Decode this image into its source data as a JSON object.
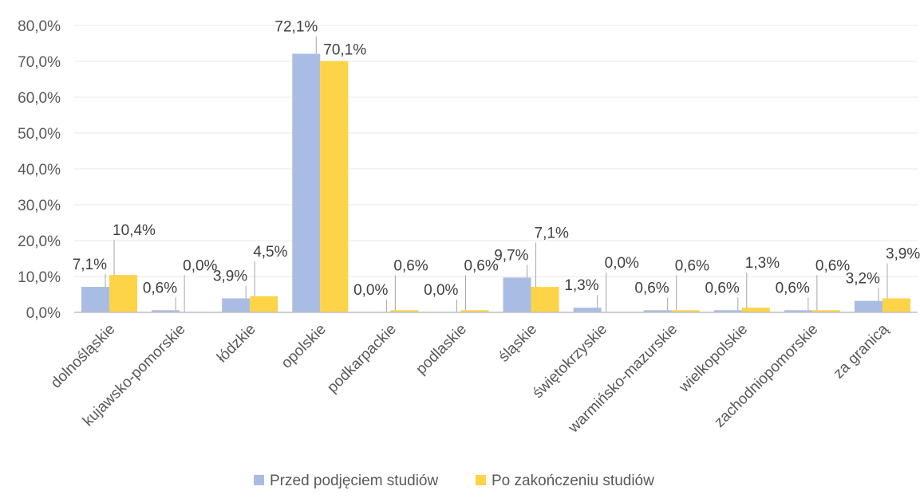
{
  "chart_data": {
    "type": "bar",
    "categories": [
      "dolnośląskie",
      "kujawsko-pomorskie",
      "łódzkie",
      "opolskie",
      "podkarpackie",
      "podlaskie",
      "śląskie",
      "świętokrzyskie",
      "warmińsko-mazurskie",
      "wielkopolskie",
      "zachodniopomorskie",
      "za granicą"
    ],
    "series": [
      {
        "name": "Przed podjęciem studiów",
        "color": "#a9bce4",
        "values": [
          7.1,
          0.6,
          3.9,
          72.1,
          0.0,
          0.0,
          9.7,
          1.3,
          0.6,
          0.6,
          0.6,
          3.2
        ],
        "labels": [
          "7,1%",
          "0,6%",
          "3,9%",
          "72,1%",
          "0,0%",
          "0,0%",
          "9,7%",
          "1,3%",
          "0,6%",
          "0,6%",
          "0,6%",
          "3,2%"
        ]
      },
      {
        "name": "Po zakończeniu studiów",
        "color": "#fdd347",
        "values": [
          10.4,
          0.0,
          4.5,
          70.1,
          0.6,
          0.6,
          7.1,
          0.0,
          0.6,
          1.3,
          0.6,
          3.9
        ],
        "labels": [
          "10,4%",
          "0,0%",
          "4,5%",
          "70,1%",
          "0,6%",
          "0,6%",
          "7,1%",
          "0,0%",
          "0,6%",
          "1,3%",
          "0,6%",
          "3,9%"
        ]
      }
    ],
    "ylim": [
      0,
      80
    ],
    "y_ticks": [
      "0,0%",
      "10,0%",
      "20,0%",
      "30,0%",
      "40,0%",
      "50,0%",
      "60,0%",
      "70,0%",
      "80,0%"
    ],
    "grid": true,
    "legend_position": "bottom",
    "title": "",
    "xlabel": "",
    "ylabel": ""
  }
}
